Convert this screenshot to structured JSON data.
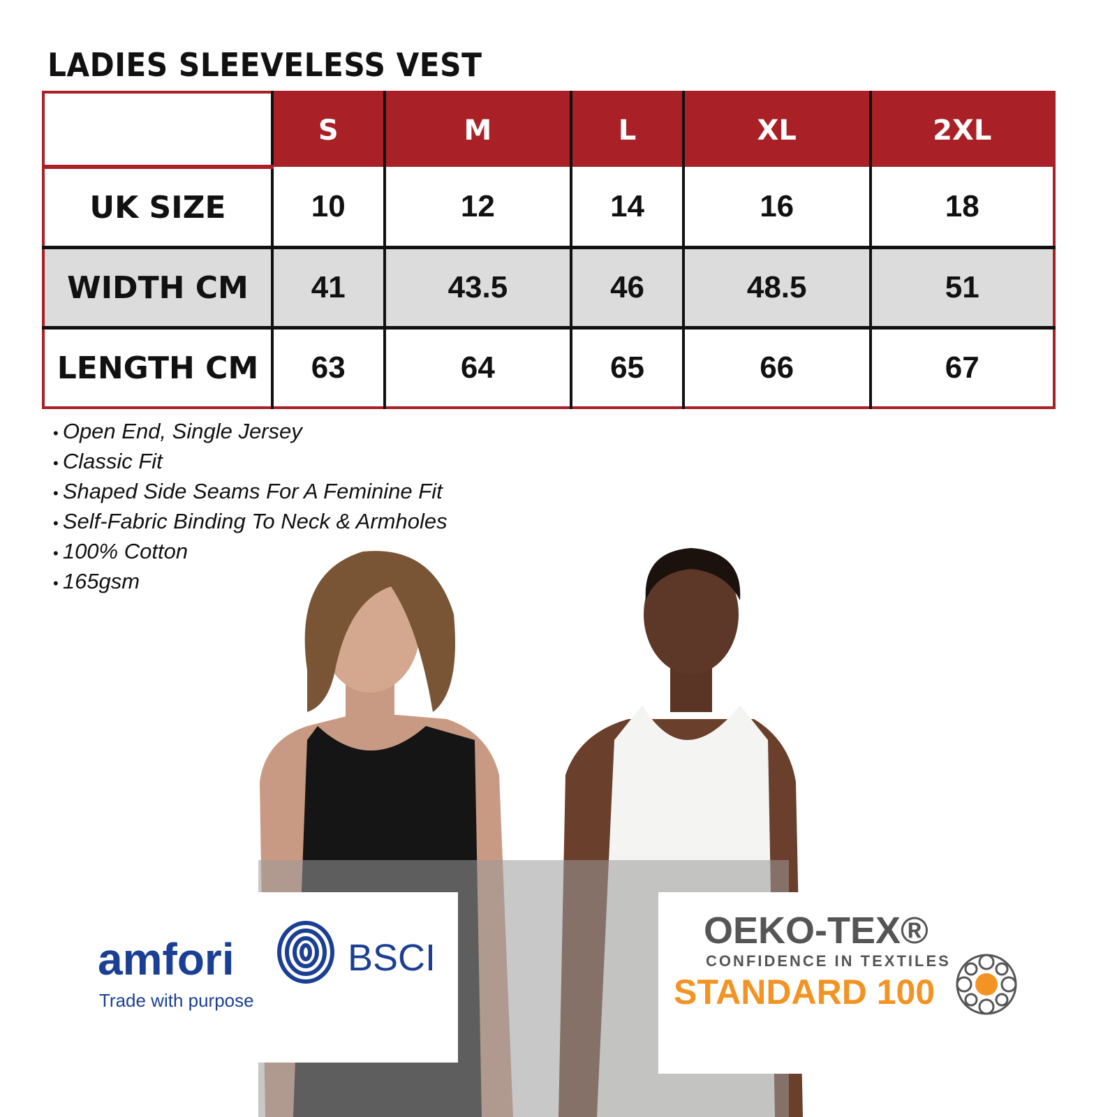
{
  "title": "LADIES SLEEVELESS VEST",
  "table": {
    "headers": [
      "",
      "S",
      "M",
      "L",
      "XL",
      "2XL"
    ],
    "rows": [
      {
        "label": "UK SIZE",
        "values": [
          "10",
          "12",
          "14",
          "16",
          "18"
        ]
      },
      {
        "label": "WIDTH CM",
        "values": [
          "41",
          "43.5",
          "46",
          "48.5",
          "51"
        ]
      },
      {
        "label": "LENGTH CM",
        "values": [
          "63",
          "64",
          "65",
          "66",
          "67"
        ]
      }
    ]
  },
  "features": [
    "Open End, Single Jersey",
    "Classic Fit",
    "Shaped Side Seams For A Feminine Fit",
    "Self-Fabric Binding To Neck & Armholes",
    "100% Cotton",
    "165gsm"
  ],
  "logos": {
    "amfori": {
      "name": "amfori",
      "suffix": "BSCI",
      "tagline": "Trade with purpose",
      "color": "#1b3f94"
    },
    "oekotex": {
      "name": "OEKO-TEX®",
      "subtitle": "CONFIDENCE IN TEXTILES",
      "standard": "STANDARD 100",
      "gray": "#555555",
      "orange": "#f39323"
    }
  },
  "colors": {
    "header_red": "#a92127",
    "row_gray": "#dcdcdc"
  }
}
